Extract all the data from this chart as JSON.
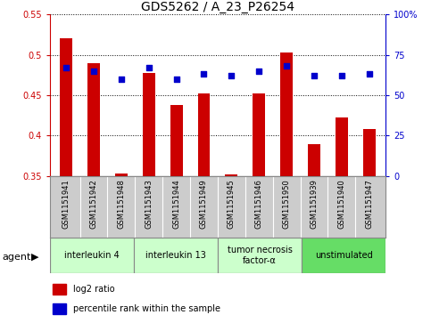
{
  "title": "GDS5262 / A_23_P26254",
  "samples": [
    "GSM1151941",
    "GSM1151942",
    "GSM1151948",
    "GSM1151943",
    "GSM1151944",
    "GSM1151949",
    "GSM1151945",
    "GSM1151946",
    "GSM1151950",
    "GSM1151939",
    "GSM1151940",
    "GSM1151947"
  ],
  "log2_ratio": [
    0.521,
    0.49,
    0.353,
    0.478,
    0.438,
    0.452,
    0.352,
    0.452,
    0.503,
    0.39,
    0.422,
    0.408
  ],
  "percentile_rank": [
    67,
    65,
    60,
    67,
    60,
    63,
    62,
    65,
    68,
    62,
    62,
    63
  ],
  "bar_bottom": 0.35,
  "ylim_left": [
    0.35,
    0.55
  ],
  "ylim_right": [
    0,
    100
  ],
  "yticks_left": [
    0.35,
    0.4,
    0.45,
    0.5,
    0.55
  ],
  "yticks_right": [
    0,
    25,
    50,
    75,
    100
  ],
  "bar_color": "#cc0000",
  "dot_color": "#0000cc",
  "agent_groups": [
    {
      "label": "interleukin 4",
      "span": [
        0,
        3
      ],
      "color": "#ccffcc"
    },
    {
      "label": "interleukin 13",
      "span": [
        3,
        6
      ],
      "color": "#ccffcc"
    },
    {
      "label": "tumor necrosis\nfactor-α",
      "span": [
        6,
        9
      ],
      "color": "#ccffcc"
    },
    {
      "label": "unstimulated",
      "span": [
        9,
        12
      ],
      "color": "#66dd66"
    }
  ],
  "left_axis_color": "#cc0000",
  "right_axis_color": "#0000cc",
  "grid_color": "#000000",
  "background_color": "#ffffff",
  "sample_box_color": "#cccccc",
  "bar_width": 0.45,
  "dot_size": 25,
  "title_fontsize": 10,
  "tick_fontsize": 7,
  "sample_fontsize": 6,
  "legend_fontsize": 7,
  "agent_fontsize": 7
}
